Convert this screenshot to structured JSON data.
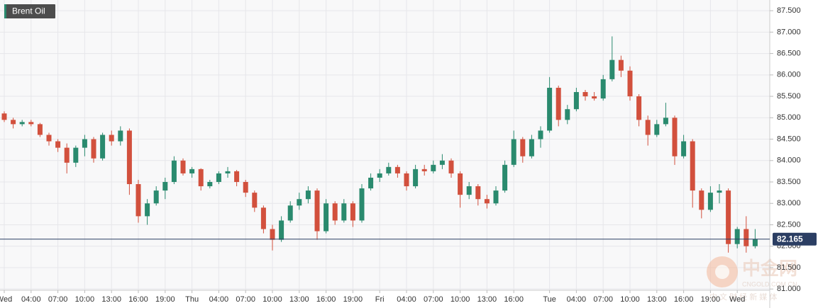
{
  "chart_data": {
    "type": "candlestick",
    "title": "Brent Oil",
    "categories": [
      "Wed",
      null,
      null,
      "04:00",
      null,
      null,
      "07:00",
      null,
      null,
      "10:00",
      null,
      null,
      "13:00",
      null,
      null,
      "16:00",
      null,
      null,
      "19:00",
      null,
      null,
      "Thu",
      null,
      null,
      "04:00",
      null,
      null,
      "07:00",
      null,
      null,
      "10:00",
      null,
      null,
      "13:00",
      null,
      null,
      "16:00",
      null,
      null,
      "19:00",
      null,
      null,
      "Fri",
      null,
      null,
      "04:00",
      null,
      null,
      "07:00",
      null,
      null,
      "10:00",
      null,
      null,
      "13:00",
      null,
      null,
      "16:00",
      null,
      null,
      null,
      "Tue",
      null,
      null,
      "04:00",
      null,
      null,
      "07:00",
      null,
      null,
      "10:00",
      null,
      null,
      "13:00",
      null,
      null,
      "16:00",
      null,
      null,
      "19:00",
      null,
      null,
      "Wed",
      null,
      null
    ],
    "open": [
      85.1,
      84.95,
      84.85,
      84.9,
      84.85,
      84.6,
      84.45,
      84.3,
      83.95,
      84.3,
      84.5,
      84.05,
      84.6,
      84.45,
      84.7,
      83.45,
      82.7,
      83.0,
      83.3,
      83.5,
      84.0,
      83.7,
      83.8,
      83.4,
      83.5,
      83.7,
      83.75,
      83.5,
      83.25,
      82.9,
      82.4,
      82.15,
      82.6,
      82.95,
      83.1,
      83.3,
      82.35,
      83.0,
      82.6,
      83.0,
      82.6,
      83.35,
      83.6,
      83.7,
      83.85,
      83.7,
      83.4,
      83.8,
      83.75,
      83.9,
      84.0,
      83.7,
      83.2,
      83.4,
      83.1,
      83.0,
      83.3,
      83.9,
      84.5,
      84.1,
      84.5,
      84.7,
      85.7,
      84.95,
      85.2,
      85.6,
      85.5,
      85.45,
      85.9,
      86.35,
      86.1,
      85.5,
      84.95,
      84.6,
      84.85,
      85.0,
      84.1,
      84.45,
      83.3,
      82.85,
      83.25,
      83.3,
      82.05,
      82.4,
      82.0
    ],
    "high": [
      85.15,
      85.0,
      84.95,
      84.95,
      84.88,
      84.65,
      84.5,
      84.4,
      84.35,
      84.6,
      84.55,
      84.65,
      84.7,
      84.8,
      84.75,
      83.55,
      83.1,
      83.4,
      83.6,
      84.1,
      84.05,
      83.85,
      83.82,
      83.55,
      83.75,
      83.85,
      83.78,
      83.55,
      83.3,
      82.95,
      82.5,
      82.7,
      83.05,
      83.25,
      83.4,
      83.35,
      83.1,
      83.05,
      83.1,
      83.05,
      83.45,
      83.7,
      83.8,
      83.95,
      83.9,
      83.75,
      83.9,
      83.9,
      84.0,
      84.15,
      84.05,
      83.75,
      83.5,
      83.45,
      83.2,
      83.4,
      84.0,
      84.7,
      84.55,
      84.6,
      84.8,
      85.95,
      85.75,
      85.3,
      85.7,
      85.65,
      85.6,
      86.0,
      86.9,
      86.45,
      86.2,
      85.55,
      85.05,
      84.95,
      85.35,
      85.05,
      84.6,
      84.5,
      83.35,
      83.4,
      83.45,
      83.35,
      82.45,
      82.7,
      82.4
    ],
    "low": [
      84.9,
      84.75,
      84.8,
      84.8,
      84.55,
      84.35,
      84.2,
      83.7,
      83.85,
      84.1,
      83.95,
      84.0,
      84.35,
      84.35,
      83.2,
      82.55,
      82.5,
      82.95,
      83.1,
      83.45,
      83.65,
      83.6,
      83.3,
      83.35,
      83.45,
      83.6,
      83.4,
      83.15,
      82.8,
      82.3,
      81.9,
      82.1,
      82.55,
      82.85,
      83.0,
      82.15,
      82.3,
      82.5,
      82.55,
      82.45,
      82.55,
      83.3,
      83.5,
      83.65,
      83.6,
      83.3,
      83.35,
      83.65,
      83.7,
      83.8,
      83.6,
      82.9,
      83.1,
      82.95,
      82.88,
      82.95,
      83.25,
      83.85,
      83.95,
      84.05,
      84.3,
      84.65,
      84.8,
      84.85,
      85.15,
      85.4,
      85.4,
      85.4,
      85.85,
      85.95,
      85.4,
      84.8,
      84.35,
      84.55,
      84.8,
      83.9,
      84.05,
      82.9,
      82.65,
      82.8,
      83.0,
      81.85,
      81.95,
      81.85,
      81.95
    ],
    "close": [
      84.95,
      84.85,
      84.9,
      84.85,
      84.6,
      84.45,
      84.3,
      83.95,
      84.3,
      84.5,
      84.05,
      84.6,
      84.45,
      84.7,
      83.45,
      82.7,
      83.0,
      83.3,
      83.5,
      84.0,
      83.7,
      83.8,
      83.4,
      83.5,
      83.7,
      83.75,
      83.5,
      83.25,
      82.9,
      82.4,
      82.15,
      82.6,
      82.95,
      83.1,
      83.3,
      82.35,
      83.0,
      82.6,
      83.0,
      82.6,
      83.35,
      83.6,
      83.7,
      83.85,
      83.7,
      83.4,
      83.8,
      83.75,
      83.9,
      84.0,
      83.7,
      83.2,
      83.4,
      83.1,
      83.0,
      83.3,
      83.9,
      84.5,
      84.1,
      84.5,
      84.7,
      85.7,
      84.95,
      85.2,
      85.6,
      85.5,
      85.45,
      85.9,
      86.35,
      86.1,
      85.5,
      84.95,
      84.6,
      84.85,
      85.0,
      84.1,
      84.45,
      83.3,
      82.85,
      83.25,
      83.3,
      82.05,
      82.4,
      82.0,
      82.165
    ],
    "up_color": "#2a8a6e",
    "down_color": "#d2503d",
    "ylim": [
      80.97,
      87.75
    ],
    "yticks": [
      {
        "value": 81,
        "label": "81.000"
      },
      {
        "value": 81.5,
        "label": "81.500"
      },
      {
        "value": 82,
        "label": "82.000"
      },
      {
        "value": 82.5,
        "label": "82.500"
      },
      {
        "value": 83,
        "label": "83.000"
      },
      {
        "value": 83.5,
        "label": "83.500"
      },
      {
        "value": 84,
        "label": "84.000"
      },
      {
        "value": 84.5,
        "label": "84.500"
      },
      {
        "value": 85,
        "label": "85.000"
      },
      {
        "value": 85.5,
        "label": "85.500"
      },
      {
        "value": 86,
        "label": "86.000"
      },
      {
        "value": 86.5,
        "label": "86.500"
      },
      {
        "value": 87,
        "label": "87.000"
      },
      {
        "value": 87.5,
        "label": "87.500"
      }
    ],
    "grid": true,
    "last_price": 82.165,
    "last_price_color": "#2b3e63",
    "watermark": {
      "name": "中金网",
      "site": "CNGOLD.COM.CN",
      "tagline": "中 文 财 经 新 媒 体"
    }
  }
}
